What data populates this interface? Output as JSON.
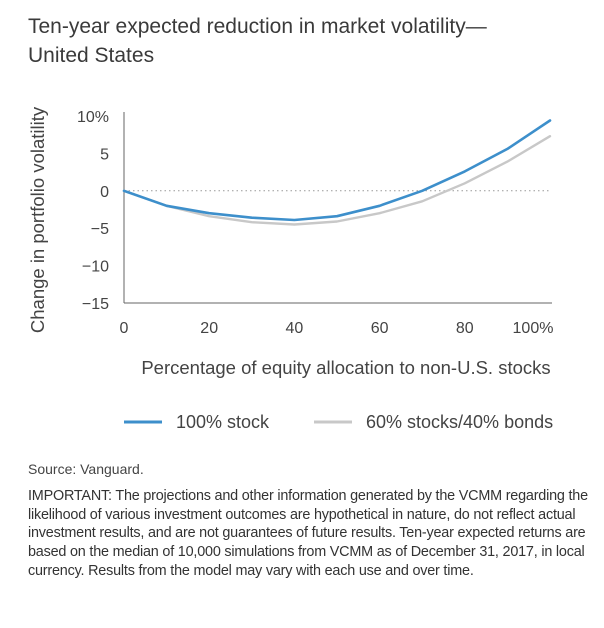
{
  "title": "Ten-year expected reduction in market volatility—\nUnited States",
  "chart_data": {
    "type": "line",
    "title": "Ten-year expected reduction in market volatility—United States",
    "xlabel": "Percentage of equity allocation to non-U.S. stocks",
    "ylabel": "Change in portfolio volatility",
    "xlim": [
      0,
      100
    ],
    "ylim": [
      -15,
      10
    ],
    "x_ticks": [
      "0",
      "20",
      "40",
      "60",
      "80",
      "100%"
    ],
    "y_ticks": [
      "10%",
      "5",
      "0",
      "−5",
      "−10",
      "−15"
    ],
    "x": [
      0,
      10,
      20,
      30,
      40,
      50,
      60,
      70,
      80,
      90,
      100
    ],
    "series": [
      {
        "name": "100% stock",
        "color": "#3d8fcb",
        "values": [
          0,
          -2.0,
          -3.0,
          -3.6,
          -3.9,
          -3.4,
          -2.0,
          0.0,
          2.6,
          5.6,
          9.4
        ]
      },
      {
        "name": "60% stocks/40% bonds",
        "color": "#c8c8c8",
        "values": [
          0,
          -2.0,
          -3.4,
          -4.2,
          -4.5,
          -4.1,
          -3.0,
          -1.4,
          1.0,
          3.9,
          7.3
        ]
      }
    ],
    "zero_line": true
  },
  "source": "Source: Vanguard.",
  "important": "IMPORTANT: The projections and other information generated by the VCMM regarding the likelihood of various investment outcomes are hypothetical in nature, do not reflect actual investment results, and are not guarantees of future results. Ten-year expected returns are based on the median of 10,000 simulations from VCMM as of December 31, 2017, in local currency. Results from the model may vary with each use and over time."
}
